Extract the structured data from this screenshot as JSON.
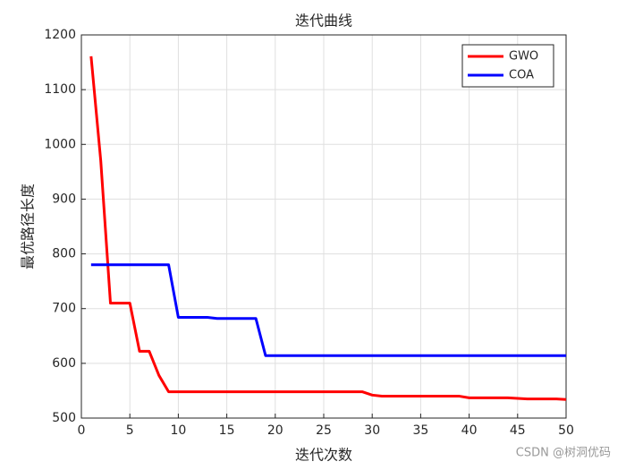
{
  "chart_data": {
    "type": "line",
    "title": "迭代曲线",
    "x_label": "迭代次数",
    "y_label": "最优路径长度",
    "x": [
      1,
      2,
      3,
      4,
      5,
      6,
      7,
      8,
      9,
      10,
      11,
      12,
      13,
      14,
      15,
      16,
      17,
      18,
      19,
      20,
      21,
      22,
      23,
      24,
      25,
      26,
      27,
      28,
      29,
      30,
      31,
      32,
      33,
      34,
      35,
      36,
      37,
      38,
      39,
      40,
      41,
      42,
      43,
      44,
      45,
      46,
      47,
      48,
      49,
      50
    ],
    "series": [
      {
        "name": "GWO",
        "color": "#ff0000",
        "values": [
          1161,
          970,
          710,
          710,
          710,
          622,
          622,
          578,
          548,
          548,
          548,
          548,
          548,
          548,
          548,
          548,
          548,
          548,
          548,
          548,
          548,
          548,
          548,
          548,
          548,
          548,
          548,
          548,
          548,
          542,
          540,
          540,
          540,
          540,
          540,
          540,
          540,
          540,
          540,
          537,
          537,
          537,
          537,
          537,
          536,
          535,
          535,
          535,
          535,
          534
        ]
      },
      {
        "name": "COA",
        "color": "#0000ff",
        "values": [
          780,
          780,
          780,
          780,
          780,
          780,
          780,
          780,
          780,
          684,
          684,
          684,
          684,
          682,
          682,
          682,
          682,
          682,
          614,
          614,
          614,
          614,
          614,
          614,
          614,
          614,
          614,
          614,
          614,
          614,
          614,
          614,
          614,
          614,
          614,
          614,
          614,
          614,
          614,
          614,
          614,
          614,
          614,
          614,
          614,
          614,
          614,
          614,
          614,
          614
        ]
      }
    ],
    "xlim": [
      0,
      50
    ],
    "xticks": [
      0,
      5,
      10,
      15,
      20,
      25,
      30,
      35,
      40,
      45,
      50
    ],
    "ylim": [
      500,
      1200
    ],
    "yticks": [
      500,
      600,
      700,
      800,
      900,
      1000,
      1100,
      1200
    ],
    "grid": true,
    "legend": "northeast"
  },
  "watermark": "CSDN @树洞优码"
}
